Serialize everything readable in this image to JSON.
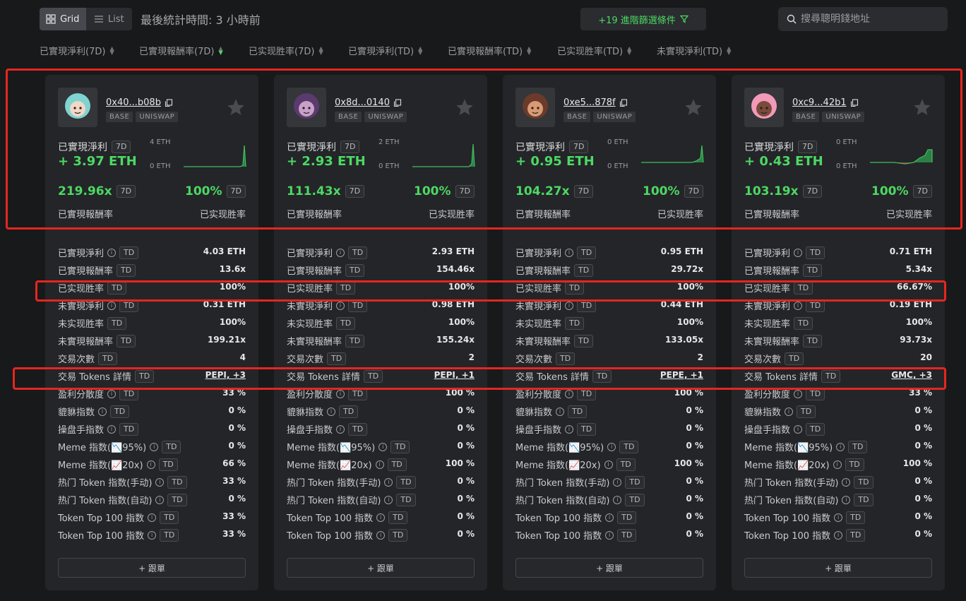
{
  "toolbar": {
    "view_grid": "Grid",
    "view_list": "List",
    "stat_time": "最後統計時間: 3 小時前",
    "filter_label": "+19 進階篩選條件",
    "search_placeholder": "搜尋聰明錢地址"
  },
  "sort_columns": [
    {
      "label": "已實現淨利(7D)",
      "active": false
    },
    {
      "label": "已實現報酬率(7D)",
      "active": true
    },
    {
      "label": "已实现胜率(7D)",
      "active": false
    },
    {
      "label": "已實現淨利(TD)",
      "active": false
    },
    {
      "label": "已實現報酬率(TD)",
      "active": false
    },
    {
      "label": "已实现胜率(TD)",
      "active": false
    },
    {
      "label": "未實現淨利(TD)",
      "active": false
    }
  ],
  "labels": {
    "realized_pnl": "已實現淨利",
    "period_7d": "7D",
    "period_td": "TD",
    "roi": "已實現報酬率",
    "winrate": "已实现胜率",
    "follow": "+ 跟單",
    "tag_chain": "BASE",
    "tag_dex": "UNISWAP"
  },
  "row_labels": [
    {
      "label": "已實現淨利",
      "info": true
    },
    {
      "label": "已實現報酬率",
      "info": false
    },
    {
      "label": "已实现胜率",
      "info": false
    },
    {
      "label": "未實現淨利",
      "info": true
    },
    {
      "label": "未实现胜率",
      "info": false
    },
    {
      "label": "未實現報酬率",
      "info": false
    },
    {
      "label": "交易次數",
      "info": false
    },
    {
      "label": "交易 Tokens 詳情",
      "info": false
    },
    {
      "label": "盈利分散度",
      "info": true
    },
    {
      "label": "貔貅指数",
      "info": true
    },
    {
      "label": "操盘手指数",
      "info": true
    },
    {
      "label": "Meme 指数(📉95%)",
      "info": true
    },
    {
      "label": "Meme 指数(📈20x)",
      "info": true
    },
    {
      "label": "热门 Token 指数(手动)",
      "info": true
    },
    {
      "label": "热门 Token 指数(自动)",
      "info": true
    },
    {
      "label": "Token Top 100 指数",
      "info": true
    },
    {
      "label": "Token Top 100 指数",
      "info": true
    }
  ],
  "cards": [
    {
      "address": "0x40...b08b",
      "pnl_7d": "+ 3.97 ETH",
      "spark_top": "4 ETH",
      "spark_bottom": "0 ETH",
      "roi_7d": "219.96x",
      "winrate_7d": "100%",
      "rows": [
        "4.03 ETH",
        "13.6x",
        "100%",
        "0.31 ETH",
        "100%",
        "199.21x",
        "4",
        "PEPI, +3",
        "33 %",
        "0 %",
        "0 %",
        "0 %",
        "66 %",
        "33 %",
        "0 %",
        "33 %",
        "33 %"
      ]
    },
    {
      "address": "0x8d...0140",
      "pnl_7d": "+ 2.93 ETH",
      "spark_top": "2 ETH",
      "spark_bottom": "0 ETH",
      "roi_7d": "111.43x",
      "winrate_7d": "100%",
      "rows": [
        "2.93 ETH",
        "154.46x",
        "100%",
        "0.98 ETH",
        "100%",
        "155.24x",
        "2",
        "PEPI, +1",
        "100 %",
        "0 %",
        "0 %",
        "0 %",
        "100 %",
        "0 %",
        "0 %",
        "0 %",
        "0 %"
      ]
    },
    {
      "address": "0xe5...878f",
      "pnl_7d": "+ 0.95 ETH",
      "spark_top": "0 ETH",
      "spark_bottom": "0 ETH",
      "roi_7d": "104.27x",
      "winrate_7d": "100%",
      "rows": [
        "0.95 ETH",
        "29.72x",
        "100%",
        "0.44 ETH",
        "100%",
        "133.05x",
        "2",
        "PEPE, +1",
        "100 %",
        "0 %",
        "0 %",
        "0 %",
        "100 %",
        "0 %",
        "0 %",
        "0 %",
        "0 %"
      ]
    },
    {
      "address": "0xc9...42b1",
      "pnl_7d": "+ 0.43 ETH",
      "spark_top": "0 ETH",
      "spark_bottom": "0 ETH",
      "roi_7d": "103.19x",
      "winrate_7d": "100%",
      "rows": [
        "0.71 ETH",
        "5.34x",
        "66.67%",
        "0.19 ETH",
        "100%",
        "93.73x",
        "20",
        "GMC, +3",
        "33 %",
        "0 %",
        "0 %",
        "0 %",
        "100 %",
        "0 %",
        "0 %",
        "0 %",
        "0 %"
      ]
    }
  ],
  "colors": {
    "profit_green": "#4cd964",
    "highlight_red": "#e5261f"
  }
}
